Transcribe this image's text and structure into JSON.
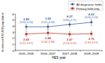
{
  "chart_data": {
    "type": "line",
    "x_label": "HES year",
    "y_label": "Incidence/100,000 population",
    "categories": [
      "2005–2006",
      "2006–2007",
      "2007–2008",
      "2008–2009"
    ],
    "series": [
      {
        "name": "All diagnostic fields",
        "color": "#3b5ba5",
        "marker": "diamond",
        "values": [
          3.89,
          3.9,
          4.27,
          4.63
        ],
        "value_labels": [
          "3.89",
          "3.90",
          "4.27",
          "4.63"
        ],
        "ci_low": [
          3.46,
          3.47,
          3.86,
          4.06
        ],
        "ci_high": [
          4.34,
          4.39,
          4.71,
          5.16
        ],
        "ci_labels": [
          "(3.46–4.34)",
          "(3.47–4.39)",
          "(3.86–4.71)",
          "(4.06–5.16)"
        ]
      },
      {
        "name": "Primary field only",
        "color": "#c0392b",
        "marker": "square",
        "values": [
          2.69,
          2.88,
          2.67,
          2.75
        ],
        "value_labels": [
          "2.69",
          "2.88",
          "2.67",
          "2.75"
        ],
        "ci_low": [
          2.25,
          2.44,
          2.24,
          2.34
        ],
        "ci_high": [
          3.17,
          3.38,
          3.15,
          3.21
        ],
        "ci_labels": [
          "(2.25–3.17)",
          "(2.44–3.38)",
          "(2.24–3.15)",
          "(2.34–3.21)"
        ]
      }
    ],
    "ylim": [
      0,
      6
    ],
    "yticks": [
      0,
      1,
      2,
      3,
      4,
      5,
      6
    ],
    "grid": false,
    "legend": "top-right",
    "data_labels": true
  }
}
